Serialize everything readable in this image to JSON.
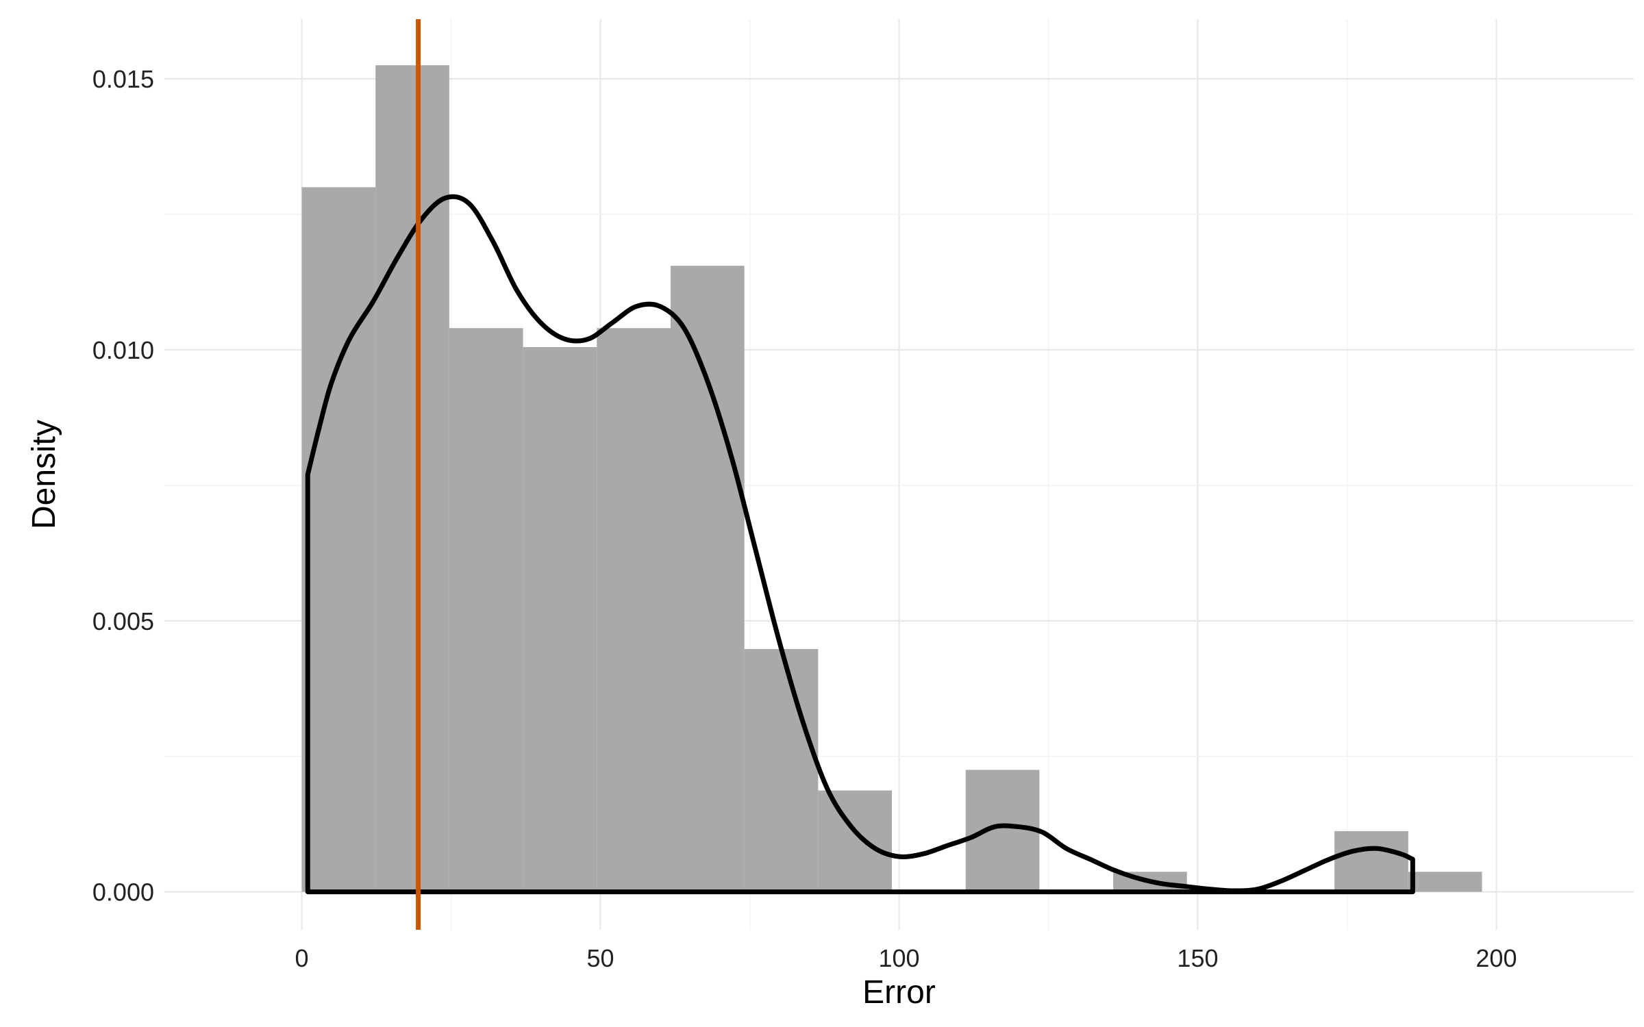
{
  "chart_data": {
    "type": "histogram-density",
    "title": "",
    "xlabel": "Error",
    "ylabel": "Density",
    "xlim": [
      -23,
      223
    ],
    "ylim": [
      -0.0007,
      0.0161
    ],
    "x_ticks": [
      0,
      50,
      100,
      150,
      200
    ],
    "x_tick_labels": [
      "0",
      "50",
      "100",
      "150",
      "200"
    ],
    "y_ticks": [
      0.0,
      0.005,
      0.01,
      0.015
    ],
    "y_tick_labels": [
      "0.000",
      "0.005",
      "0.010",
      "0.015"
    ],
    "grid": true,
    "bin_width": 12.35,
    "bins": [
      {
        "x0": 0.0,
        "x1": 12.35,
        "density": 0.013
      },
      {
        "x0": 12.35,
        "x1": 24.7,
        "density": 0.01525
      },
      {
        "x0": 24.7,
        "x1": 37.05,
        "density": 0.0104
      },
      {
        "x0": 37.05,
        "x1": 49.4,
        "density": 0.01005
      },
      {
        "x0": 49.4,
        "x1": 61.75,
        "density": 0.0104
      },
      {
        "x0": 61.75,
        "x1": 74.1,
        "density": 0.01155
      },
      {
        "x0": 74.1,
        "x1": 86.45,
        "density": 0.00448
      },
      {
        "x0": 86.45,
        "x1": 98.8,
        "density": 0.00187
      },
      {
        "x0": 98.8,
        "x1": 111.15,
        "density": 0.0
      },
      {
        "x0": 111.15,
        "x1": 123.5,
        "density": 0.00225
      },
      {
        "x0": 123.5,
        "x1": 135.85,
        "density": 0.0
      },
      {
        "x0": 135.85,
        "x1": 148.2,
        "density": 0.00037
      },
      {
        "x0": 148.2,
        "x1": 160.55,
        "density": 0.0
      },
      {
        "x0": 160.55,
        "x1": 172.9,
        "density": 0.0
      },
      {
        "x0": 172.9,
        "x1": 185.25,
        "density": 0.00112
      },
      {
        "x0": 185.25,
        "x1": 197.6,
        "density": 0.00037
      }
    ],
    "density_curve": {
      "x": [
        1,
        3,
        5,
        8,
        12,
        16,
        20,
        24,
        28,
        32,
        36,
        40,
        44,
        48,
        52,
        56,
        60,
        64,
        68,
        72,
        76,
        80,
        84,
        88,
        92,
        96,
        100,
        104,
        108,
        112,
        116,
        120,
        124,
        128,
        132,
        136,
        140,
        144,
        148,
        152,
        156,
        160,
        164,
        168,
        172,
        176,
        180,
        184,
        186
      ],
      "y": [
        0.0077,
        0.0086,
        0.0094,
        0.0102,
        0.0109,
        0.0117,
        0.0124,
        0.0128,
        0.0127,
        0.012,
        0.0111,
        0.0105,
        0.0102,
        0.0102,
        0.0105,
        0.0108,
        0.0108,
        0.0104,
        0.0094,
        0.008,
        0.0063,
        0.0046,
        0.0031,
        0.0019,
        0.0012,
        0.0008,
        0.00065,
        0.0007,
        0.00085,
        0.001,
        0.0012,
        0.0012,
        0.0011,
        0.0008,
        0.0006,
        0.0004,
        0.00025,
        0.00015,
        0.0001,
        5e-05,
        2e-05,
        5e-05,
        0.0002,
        0.0004,
        0.0006,
        0.00075,
        0.0008,
        0.0007,
        0.0006
      ],
      "x_start": 1,
      "x_end": 186,
      "color": "#000000"
    },
    "reference_line": {
      "x": 19.5,
      "color": "#cc5500"
    },
    "bar_color": "#a9a9a9",
    "grid_color": "#e6e6e6"
  }
}
